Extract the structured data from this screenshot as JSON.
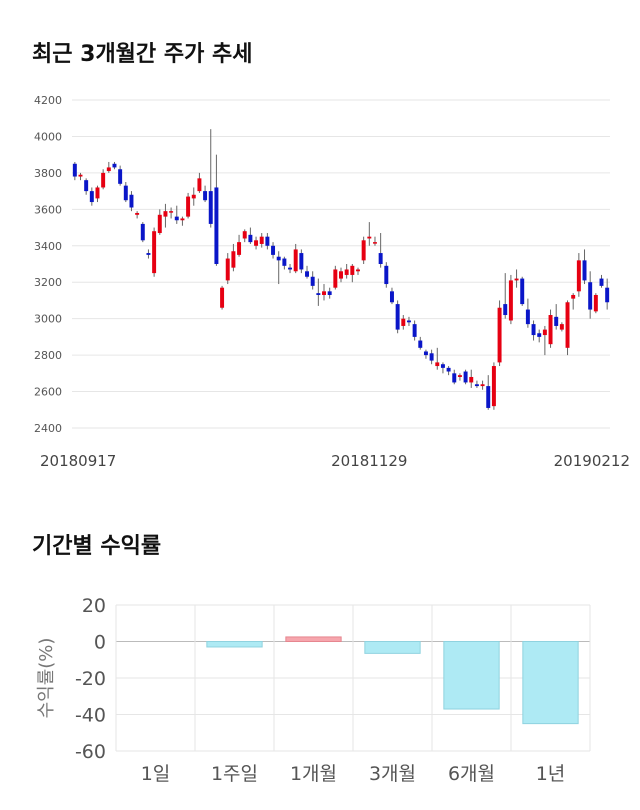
{
  "sections": {
    "price_title": "최근 3개월간 주가 추세",
    "returns_title": "기간별 수익률"
  },
  "chart_data": [
    {
      "type": "candlestick",
      "title": "최근 3개월간 주가 추세",
      "ylim": [
        2400,
        4200
      ],
      "yticks": [
        2400,
        2600,
        2800,
        3000,
        3200,
        3400,
        3600,
        3800,
        4000,
        4200
      ],
      "xtick_labels": [
        {
          "label": "20180917",
          "index": 0
        },
        {
          "label": "20181129",
          "index": 52
        },
        {
          "label": "20190212",
          "index": 104
        }
      ],
      "up_color": "#e60012",
      "down_color": "#0a16c8",
      "grid": true,
      "candles": [
        [
          3850,
          3860,
          3760,
          3780
        ],
        [
          3780,
          3800,
          3760,
          3790
        ],
        [
          3760,
          3770,
          3680,
          3700
        ],
        [
          3700,
          3720,
          3620,
          3640
        ],
        [
          3660,
          3730,
          3640,
          3720
        ],
        [
          3720,
          3820,
          3710,
          3800
        ],
        [
          3810,
          3860,
          3800,
          3830
        ],
        [
          3850,
          3860,
          3820,
          3830
        ],
        [
          3820,
          3840,
          3730,
          3740
        ],
        [
          3730,
          3750,
          3640,
          3650
        ],
        [
          3680,
          3700,
          3590,
          3610
        ],
        [
          3570,
          3590,
          3550,
          3580
        ],
        [
          3520,
          3530,
          3420,
          3430
        ],
        [
          3360,
          3380,
          3330,
          3350
        ],
        [
          3250,
          3500,
          3230,
          3480
        ],
        [
          3470,
          3600,
          3460,
          3570
        ],
        [
          3560,
          3630,
          3500,
          3590
        ],
        [
          3590,
          3610,
          3550,
          3590
        ],
        [
          3560,
          3620,
          3520,
          3540
        ],
        [
          3540,
          3560,
          3510,
          3550
        ],
        [
          3560,
          3690,
          3550,
          3670
        ],
        [
          3660,
          3720,
          3620,
          3680
        ],
        [
          3700,
          3800,
          3690,
          3770
        ],
        [
          3700,
          3730,
          3640,
          3650
        ],
        [
          3700,
          4040,
          3500,
          3520
        ],
        [
          3720,
          3900,
          3290,
          3300
        ],
        [
          3060,
          3180,
          3050,
          3170
        ],
        [
          3210,
          3360,
          3190,
          3330
        ],
        [
          3280,
          3410,
          3260,
          3370
        ],
        [
          3350,
          3460,
          3340,
          3420
        ],
        [
          3440,
          3490,
          3420,
          3480
        ],
        [
          3460,
          3500,
          3410,
          3420
        ],
        [
          3400,
          3450,
          3380,
          3430
        ],
        [
          3410,
          3470,
          3390,
          3450
        ],
        [
          3450,
          3470,
          3380,
          3400
        ],
        [
          3400,
          3420,
          3330,
          3350
        ],
        [
          3340,
          3370,
          3190,
          3320
        ],
        [
          3330,
          3340,
          3270,
          3290
        ],
        [
          3280,
          3300,
          3250,
          3270
        ],
        [
          3260,
          3410,
          3250,
          3380
        ],
        [
          3360,
          3380,
          3250,
          3270
        ],
        [
          3260,
          3290,
          3220,
          3230
        ],
        [
          3230,
          3260,
          3160,
          3180
        ],
        [
          3140,
          3220,
          3070,
          3130
        ],
        [
          3130,
          3190,
          3100,
          3150
        ],
        [
          3150,
          3170,
          3110,
          3130
        ],
        [
          3170,
          3290,
          3160,
          3270
        ],
        [
          3220,
          3280,
          3200,
          3260
        ],
        [
          3240,
          3300,
          3220,
          3270
        ],
        [
          3240,
          3300,
          3200,
          3290
        ],
        [
          3260,
          3280,
          3240,
          3270
        ],
        [
          3320,
          3450,
          3300,
          3430
        ],
        [
          3440,
          3530,
          3400,
          3450
        ],
        [
          3420,
          3450,
          3400,
          3420
        ],
        [
          3360,
          3470,
          3280,
          3300
        ],
        [
          3290,
          3310,
          3170,
          3190
        ],
        [
          3150,
          3170,
          3080,
          3090
        ],
        [
          3080,
          3100,
          2920,
          2940
        ],
        [
          2960,
          3020,
          2940,
          3000
        ],
        [
          2990,
          3010,
          2960,
          2980
        ],
        [
          2970,
          2990,
          2880,
          2900
        ],
        [
          2880,
          2900,
          2830,
          2840
        ],
        [
          2820,
          2830,
          2780,
          2800
        ],
        [
          2810,
          2830,
          2750,
          2770
        ],
        [
          2740,
          2840,
          2720,
          2760
        ],
        [
          2750,
          2760,
          2700,
          2730
        ],
        [
          2730,
          2740,
          2690,
          2710
        ],
        [
          2700,
          2720,
          2640,
          2650
        ],
        [
          2680,
          2700,
          2660,
          2690
        ],
        [
          2710,
          2720,
          2640,
          2650
        ],
        [
          2650,
          2720,
          2620,
          2680
        ],
        [
          2640,
          2660,
          2620,
          2630
        ],
        [
          2630,
          2660,
          2610,
          2640
        ],
        [
          2630,
          2690,
          2500,
          2510
        ],
        [
          2520,
          2760,
          2500,
          2740
        ],
        [
          2760,
          3100,
          2740,
          3060
        ],
        [
          3080,
          3250,
          3000,
          3020
        ],
        [
          2990,
          3240,
          2970,
          3210
        ],
        [
          3210,
          3270,
          3170,
          3220
        ],
        [
          3220,
          3230,
          3070,
          3080
        ],
        [
          3050,
          3110,
          2950,
          2970
        ],
        [
          2970,
          2990,
          2880,
          2910
        ],
        [
          2920,
          2940,
          2870,
          2900
        ],
        [
          2910,
          2960,
          2800,
          2940
        ],
        [
          2860,
          3050,
          2840,
          3020
        ],
        [
          3010,
          3080,
          2940,
          2960
        ],
        [
          2940,
          2980,
          2930,
          2970
        ],
        [
          2840,
          3100,
          2800,
          3090
        ],
        [
          3110,
          3140,
          3050,
          3130
        ],
        [
          3150,
          3360,
          3120,
          3320
        ],
        [
          3320,
          3380,
          3190,
          3210
        ],
        [
          3200,
          3260,
          3000,
          3050
        ],
        [
          3040,
          3140,
          3030,
          3130
        ],
        [
          3220,
          3240,
          3170,
          3180
        ],
        [
          3170,
          3220,
          3050,
          3090
        ]
      ]
    },
    {
      "type": "bar",
      "title": "기간별 수익률",
      "ylabel": "수익률(%)",
      "categories": [
        "1일",
        "1주일",
        "1개월",
        "3개월",
        "6개월",
        "1년"
      ],
      "values": [
        0,
        -3,
        2.5,
        -6.5,
        -37,
        -45
      ],
      "ylim": [
        -60,
        20
      ],
      "yticks": [
        20,
        0,
        -20,
        -40,
        -60
      ],
      "positive_color": "#f6a6ad",
      "negative_color": "#aeeaf4",
      "grid": true
    }
  ]
}
